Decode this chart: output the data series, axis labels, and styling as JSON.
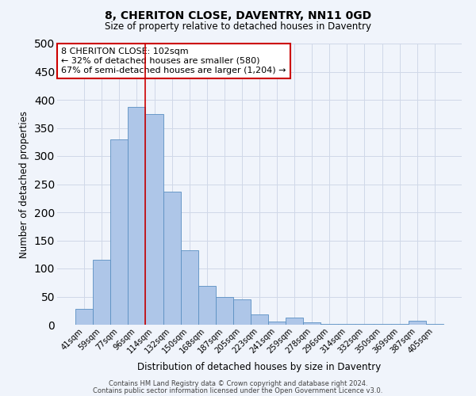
{
  "title": "8, CHERITON CLOSE, DAVENTRY, NN11 0GD",
  "subtitle": "Size of property relative to detached houses in Daventry",
  "xlabel": "Distribution of detached houses by size in Daventry",
  "ylabel": "Number of detached properties",
  "bar_labels": [
    "41sqm",
    "59sqm",
    "77sqm",
    "96sqm",
    "114sqm",
    "132sqm",
    "150sqm",
    "168sqm",
    "187sqm",
    "205sqm",
    "223sqm",
    "241sqm",
    "259sqm",
    "278sqm",
    "296sqm",
    "314sqm",
    "332sqm",
    "350sqm",
    "369sqm",
    "387sqm",
    "405sqm"
  ],
  "bar_values": [
    28,
    116,
    330,
    387,
    374,
    236,
    133,
    69,
    50,
    45,
    19,
    6,
    13,
    4,
    2,
    1,
    1,
    1,
    1,
    7,
    1
  ],
  "bar_color": "#aec6e8",
  "bar_edge_color": "#5a8fc2",
  "bg_color": "#f0f4fb",
  "grid_color": "#d0d8e8",
  "vline_index": 3,
  "vline_color": "#cc0000",
  "annotation_text": "8 CHERITON CLOSE: 102sqm\n← 32% of detached houses are smaller (580)\n67% of semi-detached houses are larger (1,204) →",
  "annotation_box_color": "#cc0000",
  "ylim": [
    0,
    500
  ],
  "yticks": [
    0,
    50,
    100,
    150,
    200,
    250,
    300,
    350,
    400,
    450,
    500
  ],
  "footer_line1": "Contains HM Land Registry data © Crown copyright and database right 2024.",
  "footer_line2": "Contains public sector information licensed under the Open Government Licence v3.0."
}
